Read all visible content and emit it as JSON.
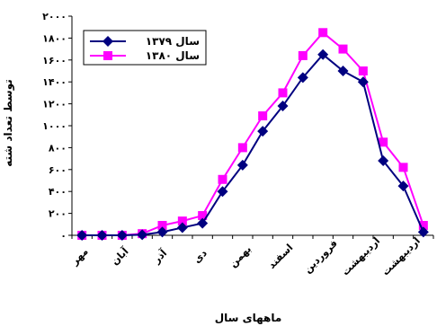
{
  "chart_data": {
    "type": "line",
    "title": "",
    "xlabel": "ماههای سال",
    "ylabel": "توسط تعداد شته",
    "ylim": [
      0,
      2000
    ],
    "yticks": [
      "۰",
      "۲۰۰",
      "۴۰۰",
      "۶۰۰",
      "۸۰۰",
      "۱۰۰۰",
      "۱۲۰۰",
      "۱۴۰۰",
      "۱۶۰۰",
      "۱۸۰۰",
      "۲۰۰۰"
    ],
    "categories": [
      "مهر",
      "",
      "آبان",
      "",
      "آذر",
      "",
      "دی",
      "",
      "بهمن",
      "",
      "اسفند",
      "",
      "فروردین",
      "",
      "اردیبهشت",
      "",
      "اردیبهشت",
      ""
    ],
    "grid": false,
    "legend_position": "top-left",
    "series": [
      {
        "name": "سال ۱۳۷۹",
        "color": "#000080",
        "marker": "diamond",
        "values": [
          0,
          0,
          0,
          5,
          30,
          70,
          110,
          400,
          640,
          950,
          1180,
          1440,
          1650,
          1500,
          1400,
          680,
          450,
          30
        ]
      },
      {
        "name": "سال ۱۳۸۰",
        "color": "#ff00ff",
        "marker": "square",
        "values": [
          0,
          0,
          0,
          15,
          90,
          130,
          180,
          510,
          800,
          1090,
          1300,
          1640,
          1850,
          1700,
          1500,
          850,
          620,
          90
        ]
      }
    ]
  }
}
